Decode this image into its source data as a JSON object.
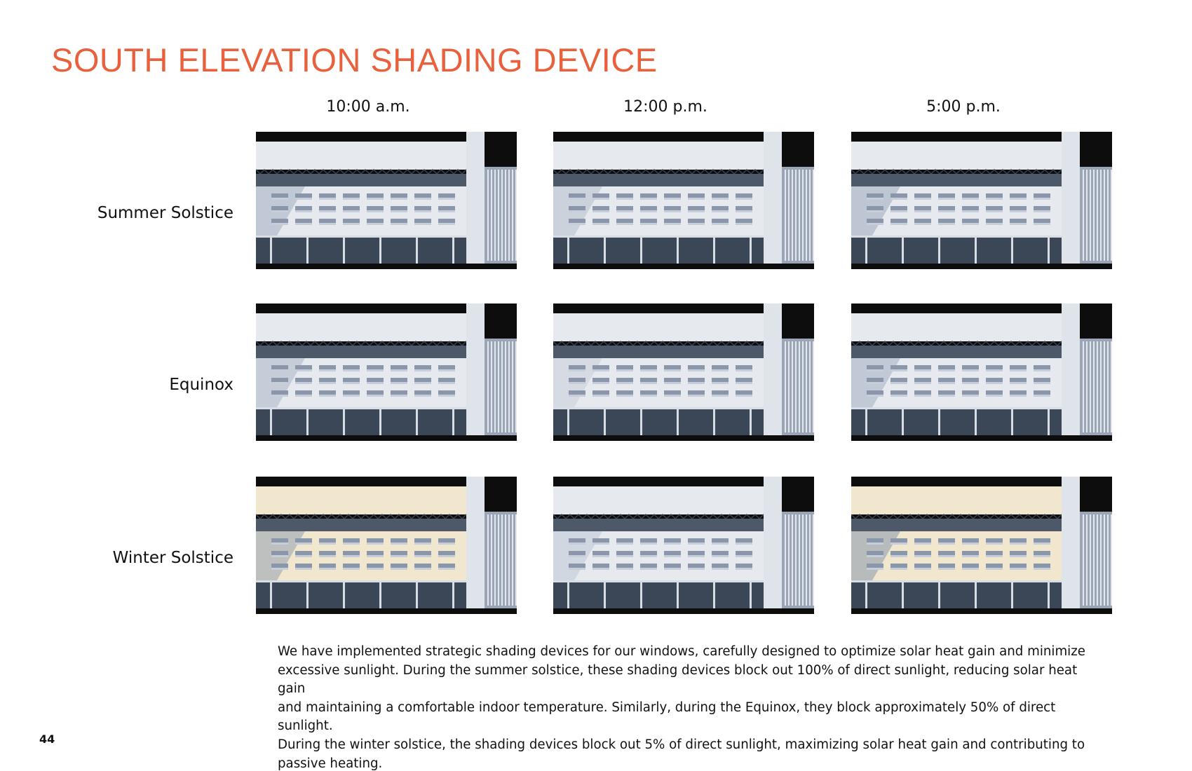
{
  "title": "SOUTH ELEVATION SHADING DEVICE",
  "columns": [
    "10:00 a.m.",
    "12:00 p.m.",
    "5:00 p.m."
  ],
  "rows": [
    "Summer Solstice",
    "Equinox",
    "Winter Solstice"
  ],
  "renders": [
    {
      "row": "Summer Solstice",
      "time": "10:00 a.m.",
      "tone": "cool"
    },
    {
      "row": "Summer Solstice",
      "time": "12:00 p.m.",
      "tone": "cool"
    },
    {
      "row": "Summer Solstice",
      "time": "5:00 p.m.",
      "tone": "cool"
    },
    {
      "row": "Equinox",
      "time": "10:00 a.m.",
      "tone": "cool"
    },
    {
      "row": "Equinox",
      "time": "12:00 p.m.",
      "tone": "cool"
    },
    {
      "row": "Equinox",
      "time": "5:00 p.m.",
      "tone": "cool"
    },
    {
      "row": "Winter Solstice",
      "time": "10:00 a.m.",
      "tone": "warm"
    },
    {
      "row": "Winter Solstice",
      "time": "12:00 p.m.",
      "tone": "cool"
    },
    {
      "row": "Winter Solstice",
      "time": "5:00 p.m.",
      "tone": "warm"
    }
  ],
  "description_lines": [
    "We have implemented strategic shading devices for our windows, carefully designed to optimize solar heat gain and minimize",
    "excessive sunlight. During the summer solstice, these shading devices block out 100% of direct sunlight, reducing solar heat gain",
    "and maintaining a comfortable indoor temperature. Similarly, during the Equinox, they block approximately 50% of direct sunlight.",
    "During the winter solstice, the shading devices block out 5% of direct sunlight, maximizing solar heat gain and contributing to",
    "passive heating."
  ],
  "page_number": "44",
  "colors": {
    "title": "#e8613c",
    "text": "#111111",
    "facade_cool": "#e6e9ee",
    "facade_warm": "#f1e7cf",
    "shadow": "#7f90a8"
  }
}
